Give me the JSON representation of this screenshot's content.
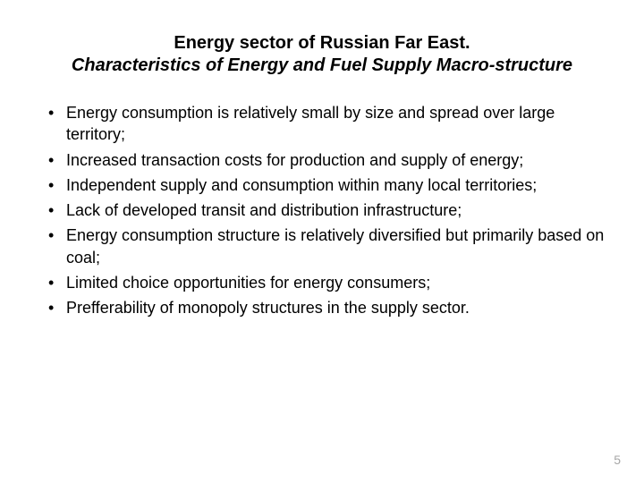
{
  "title": {
    "line1": "Energy sector of Russian Far East.",
    "line2": "Characteristics of Energy and Fuel Supply Macro-structure"
  },
  "bullets": [
    "Energy consumption is relatively small by size and spread over large territory;",
    "Increased transaction costs for production and supply of energy;",
    "Independent supply and consumption within many local territories;",
    "Lack of developed transit and distribution infrastructure;",
    "Energy consumption structure is relatively diversified but primarily based on coal;",
    "Limited choice opportunities for energy consumers;",
    "Prefferability of monopoly structures in the supply sector."
  ],
  "page_number": "5",
  "style": {
    "background_color": "#ffffff",
    "text_color": "#000000",
    "page_number_color": "#a6a6a6",
    "title_fontsize_pt": 20,
    "body_fontsize_pt": 18,
    "font_family": "Arial"
  }
}
